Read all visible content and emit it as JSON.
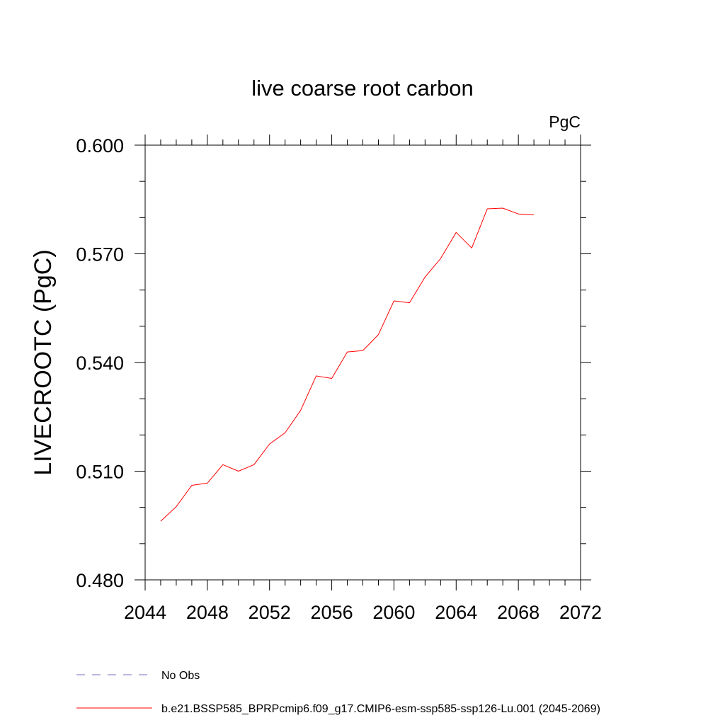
{
  "chart_data": {
    "type": "line",
    "title": "live coarse root carbon",
    "units_label": "PgC",
    "ylabel": "LIVECROOTC  (PgC)",
    "xlabel": "",
    "xlim": [
      2044,
      2072
    ],
    "ylim": [
      0.48,
      0.6
    ],
    "x_ticks": [
      2044,
      2048,
      2052,
      2056,
      2060,
      2064,
      2068,
      2072
    ],
    "x_tick_labels": [
      "2044",
      "2048",
      "2052",
      "2056",
      "2060",
      "2064",
      "2068",
      "2072"
    ],
    "x_minor_step": 1,
    "y_ticks": [
      0.48,
      0.51,
      0.54,
      0.57,
      0.6
    ],
    "y_tick_labels": [
      "0.480",
      "0.510",
      "0.540",
      "0.570",
      "0.600"
    ],
    "y_minor_step": 0.01,
    "grid": false,
    "legend_position": "bottom",
    "series": [
      {
        "name": "No Obs",
        "color": "#7b6fbf",
        "dash": "dashed",
        "x": [],
        "values": []
      },
      {
        "name": "b.e21.BSSP585_BPRPcmip6.f09_g17.CMIP6-esm-ssp585-ssp126-Lu.001 (2045-2069)",
        "color": "#ff0000",
        "dash": "solid",
        "x": [
          2045,
          2046,
          2047,
          2048,
          2049,
          2050,
          2051,
          2052,
          2053,
          2054,
          2055,
          2056,
          2057,
          2058,
          2059,
          2060,
          2061,
          2062,
          2063,
          2064,
          2065,
          2066,
          2067,
          2068,
          2069
        ],
        "values": [
          0.4962,
          0.5002,
          0.5061,
          0.5067,
          0.5118,
          0.51,
          0.5118,
          0.5175,
          0.5206,
          0.5268,
          0.5363,
          0.5356,
          0.5429,
          0.5433,
          0.5477,
          0.557,
          0.5565,
          0.5636,
          0.5687,
          0.5759,
          0.5716,
          0.5824,
          0.5826,
          0.581,
          0.5808
        ]
      }
    ]
  }
}
